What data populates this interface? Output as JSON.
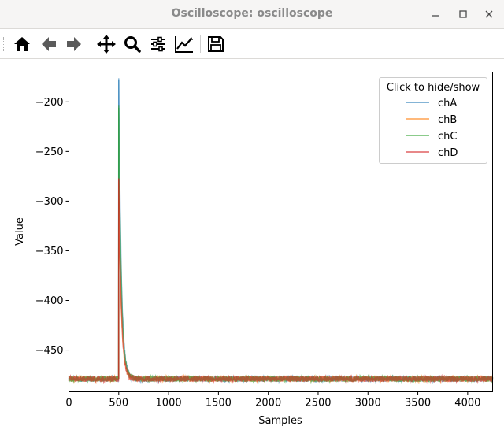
{
  "window": {
    "title": "Oscilloscope: oscilloscope"
  },
  "toolbar": {
    "icons": [
      "home-icon",
      "back-arrow-icon",
      "forward-arrow-icon",
      "pan-icon",
      "zoom-icon",
      "subplots-icon",
      "axes-edit-icon",
      "save-icon"
    ]
  },
  "chart_data": {
    "type": "line",
    "xlabel": "Samples",
    "ylabel": "Value",
    "xlim": [
      0,
      4250
    ],
    "ylim": [
      -492,
      -170
    ],
    "xticks": [
      0,
      500,
      1000,
      1500,
      2000,
      2500,
      3000,
      3500,
      4000
    ],
    "yticks": [
      -200,
      -250,
      -300,
      -350,
      -400,
      -450
    ],
    "legend": {
      "title": "Click to hide/show",
      "placement": "top-right"
    },
    "series": [
      {
        "name": "chA",
        "color": "#1f77b4",
        "baseline": -479,
        "noise": 3,
        "peak": -178,
        "peak_at": 500,
        "decay": 25
      },
      {
        "name": "chB",
        "color": "#ff7f0e",
        "baseline": -479,
        "noise": 3,
        "peak": -280,
        "peak_at": 500,
        "decay": 25
      },
      {
        "name": "chC",
        "color": "#2ca02c",
        "baseline": -479,
        "noise": 3,
        "peak": -206,
        "peak_at": 500,
        "decay": 25
      },
      {
        "name": "chD",
        "color": "#d62728",
        "baseline": -479,
        "noise": 3,
        "peak": -277,
        "peak_at": 500,
        "decay": 25
      }
    ]
  }
}
